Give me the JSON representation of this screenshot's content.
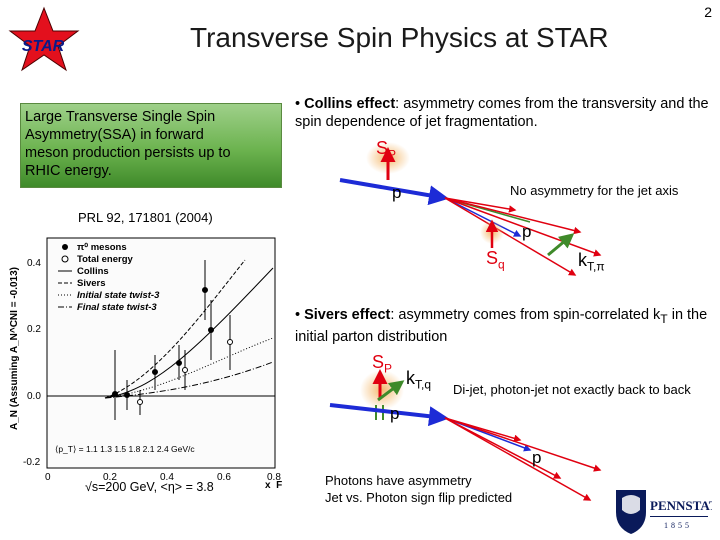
{
  "slide_number": "2",
  "title": "Transverse Spin Physics at STAR",
  "logo_text": "STAR",
  "callout_lines": [
    "Large Transverse Single Spin",
    "Asymmetry(SSA) in forward",
    "meson production persists up to",
    "RHIC energy."
  ],
  "reference": "PRL 92, 171801 (2004)",
  "plot": {
    "legend": [
      "π⁰ mesons",
      "Total energy",
      "Collins",
      "Sivers",
      "Initial state twist-3",
      "Final state twist-3"
    ],
    "ylabel": "A_N (Assuming A_N^CNI = -0.013)",
    "xlabel": "x_F",
    "y_ticks": [
      "0.4",
      "0.2",
      "0.0",
      "-0.2"
    ],
    "x_ticks": [
      "0",
      "0.2",
      "0.4",
      "0.6",
      "0.8"
    ],
    "pt_row": "⟨p_T⟩ = 1.1  1.3  1.5  1.8  2.1  2.4  GeV/c",
    "ylim": [
      -0.2,
      0.5
    ],
    "xlim": [
      0,
      0.8
    ]
  },
  "sqrt_s": "√s=200 GeV, <η> = 3.8",
  "collins": {
    "heading": "Collins effect",
    "text": ": asymmetry comes from the transversity and the spin dependence of jet fragmentation.",
    "sp": "S",
    "sp_sub": "P",
    "p_label": "p",
    "note": "No asymmetry for the jet axis",
    "p2_label": "p",
    "sq": "S",
    "sq_sub": "q",
    "kt": "k",
    "kt_sub": "T,π"
  },
  "sivers": {
    "heading": "Sivers effect",
    "text": ": asymmetry comes from spin-correlated k",
    "text_sub": "T",
    "text_end": " in the initial parton distribution",
    "sp": "S",
    "sp_sub": "P",
    "kt": "k",
    "kt_sub": "T,q",
    "note": "Di-jet, photon-jet not exactly back to back",
    "p_label": "p",
    "p2_label": "p",
    "photon_note_1": "Photons have asymmetry",
    "photon_note_2": "Jet vs. Photon sign flip predicted"
  },
  "pennstate": {
    "name": "PENNSTATE",
    "year": "1855"
  },
  "colors": {
    "blue": "#1d2bd6",
    "red": "#e00010",
    "green": "#3f8a2a",
    "orange_glow": "#f3b25f"
  }
}
